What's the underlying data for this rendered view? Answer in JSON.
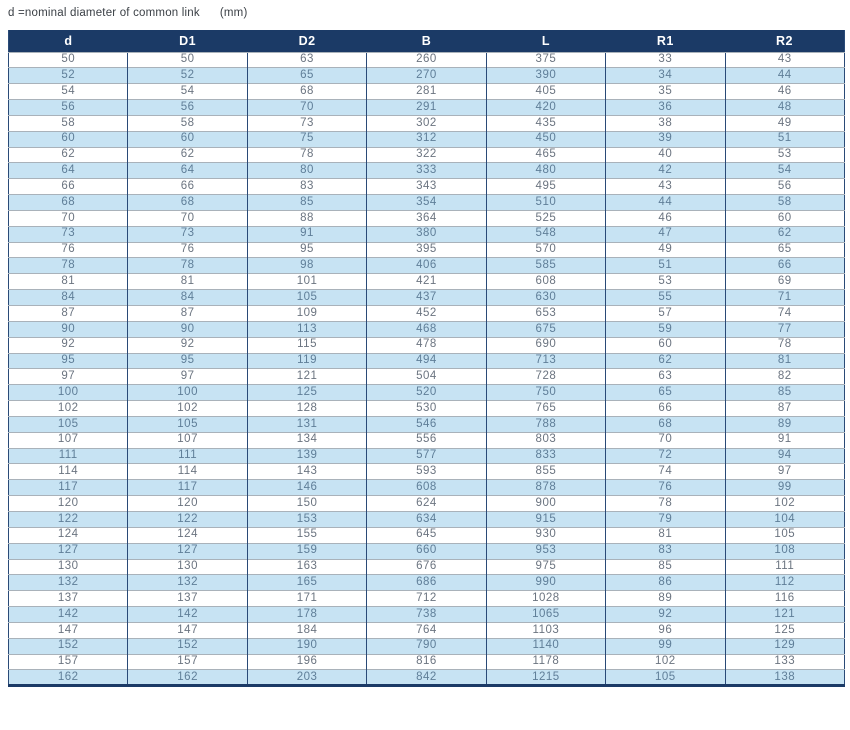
{
  "note": {
    "text": "d =nominal diameter of common link",
    "unit": "(mm)"
  },
  "table": {
    "columns": [
      "d",
      "D1",
      "D2",
      "B",
      "L",
      "R1",
      "R2"
    ],
    "rows": [
      [
        50,
        50,
        63,
        260,
        375,
        33,
        43
      ],
      [
        52,
        52,
        65,
        270,
        390,
        34,
        44
      ],
      [
        54,
        54,
        68,
        281,
        405,
        35,
        46
      ],
      [
        56,
        56,
        70,
        291,
        420,
        36,
        48
      ],
      [
        58,
        58,
        73,
        302,
        435,
        38,
        49
      ],
      [
        60,
        60,
        75,
        312,
        450,
        39,
        51
      ],
      [
        62,
        62,
        78,
        322,
        465,
        40,
        53
      ],
      [
        64,
        64,
        80,
        333,
        480,
        42,
        54
      ],
      [
        66,
        66,
        83,
        343,
        495,
        43,
        56
      ],
      [
        68,
        68,
        85,
        354,
        510,
        44,
        58
      ],
      [
        70,
        70,
        88,
        364,
        525,
        46,
        60
      ],
      [
        73,
        73,
        91,
        380,
        548,
        47,
        62
      ],
      [
        76,
        76,
        95,
        395,
        570,
        49,
        65
      ],
      [
        78,
        78,
        98,
        406,
        585,
        51,
        66
      ],
      [
        81,
        81,
        101,
        421,
        608,
        53,
        69
      ],
      [
        84,
        84,
        105,
        437,
        630,
        55,
        71
      ],
      [
        87,
        87,
        109,
        452,
        653,
        57,
        74
      ],
      [
        90,
        90,
        113,
        468,
        675,
        59,
        77
      ],
      [
        92,
        92,
        115,
        478,
        690,
        60,
        78
      ],
      [
        95,
        95,
        119,
        494,
        713,
        62,
        81
      ],
      [
        97,
        97,
        121,
        504,
        728,
        63,
        82
      ],
      [
        100,
        100,
        125,
        520,
        750,
        65,
        85
      ],
      [
        102,
        102,
        128,
        530,
        765,
        66,
        87
      ],
      [
        105,
        105,
        131,
        546,
        788,
        68,
        89
      ],
      [
        107,
        107,
        134,
        556,
        803,
        70,
        91
      ],
      [
        111,
        111,
        139,
        577,
        833,
        72,
        94
      ],
      [
        114,
        114,
        143,
        593,
        855,
        74,
        97
      ],
      [
        117,
        117,
        146,
        608,
        878,
        76,
        99
      ],
      [
        120,
        120,
        150,
        624,
        900,
        78,
        102
      ],
      [
        122,
        122,
        153,
        634,
        915,
        79,
        104
      ],
      [
        124,
        124,
        155,
        645,
        930,
        81,
        105
      ],
      [
        127,
        127,
        159,
        660,
        953,
        83,
        108
      ],
      [
        130,
        130,
        163,
        676,
        975,
        85,
        111
      ],
      [
        132,
        132,
        165,
        686,
        990,
        86,
        112
      ],
      [
        137,
        137,
        171,
        712,
        1028,
        89,
        116
      ],
      [
        142,
        142,
        178,
        738,
        1065,
        92,
        121
      ],
      [
        147,
        147,
        184,
        764,
        1103,
        96,
        125
      ],
      [
        152,
        152,
        190,
        790,
        1140,
        99,
        129
      ],
      [
        157,
        157,
        196,
        816,
        1178,
        102,
        133
      ],
      [
        162,
        162,
        203,
        842,
        1215,
        105,
        138
      ]
    ]
  },
  "colors": {
    "header_bg": "#1b3a66",
    "header_text": "#ffffff",
    "stripe_bg": "#c7e3f3",
    "row_text": "#6b7480",
    "border_navy": "#2a4a77",
    "row_line": "#a9b2ba",
    "note_text": "#3a3f45"
  }
}
